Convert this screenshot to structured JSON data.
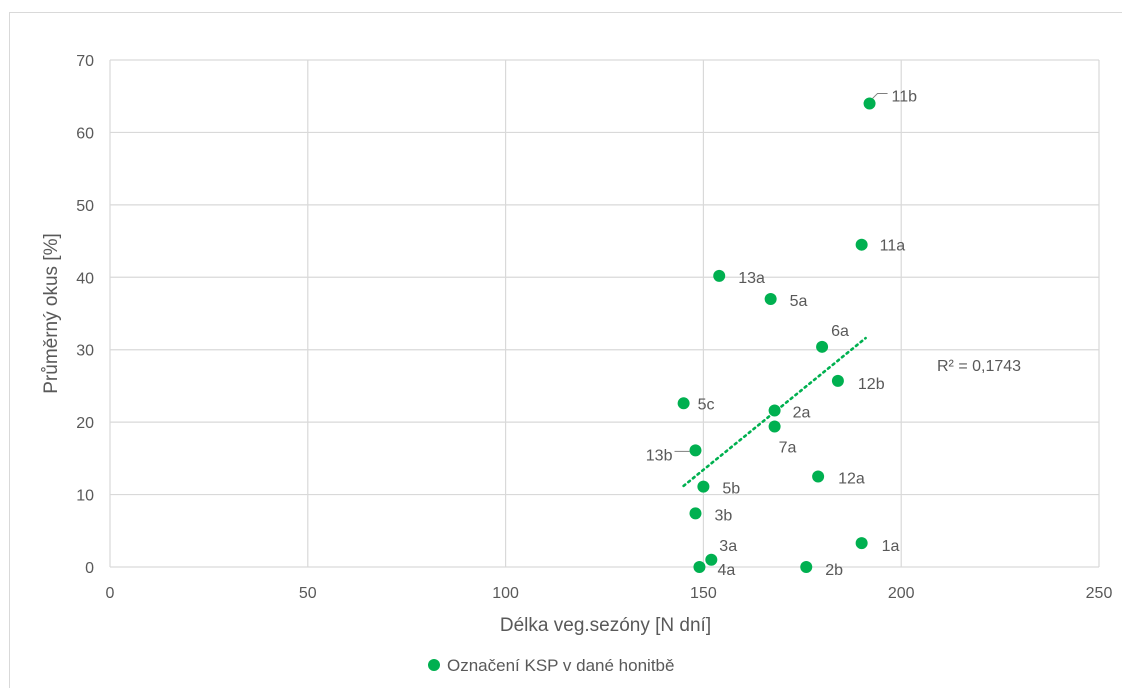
{
  "chart_data": {
    "type": "scatter",
    "title": "",
    "xlabel": "Délka veg.sezóny [N dní]",
    "ylabel": "Průměrný okus [%]",
    "xlim": [
      0,
      250
    ],
    "ylim": [
      0,
      70
    ],
    "x_ticks": [
      "0",
      "50",
      "100",
      "150",
      "200",
      "250"
    ],
    "y_ticks": [
      "0",
      "10",
      "20",
      "30",
      "40",
      "50",
      "60",
      "70"
    ],
    "grid": true,
    "legend": "bottom",
    "color": "#00b050",
    "series": [
      {
        "name": "Označení KSP v dané honitbě",
        "points": [
          {
            "label": "11b",
            "x": 192,
            "y": 64.0
          },
          {
            "label": "11a",
            "x": 190,
            "y": 44.5
          },
          {
            "label": "13a",
            "x": 154,
            "y": 40.2
          },
          {
            "label": "5a",
            "x": 167,
            "y": 37.0
          },
          {
            "label": "6a",
            "x": 180,
            "y": 30.4
          },
          {
            "label": "12b",
            "x": 184,
            "y": 25.7
          },
          {
            "label": "5c",
            "x": 145,
            "y": 22.6
          },
          {
            "label": "2a",
            "x": 168,
            "y": 21.6
          },
          {
            "label": "7a",
            "x": 168,
            "y": 19.4
          },
          {
            "label": "13b",
            "x": 148,
            "y": 16.1
          },
          {
            "label": "12a",
            "x": 179,
            "y": 12.5
          },
          {
            "label": "5b",
            "x": 150,
            "y": 11.1
          },
          {
            "label": "3b",
            "x": 148,
            "y": 7.4
          },
          {
            "label": "1a",
            "x": 190,
            "y": 3.3
          },
          {
            "label": "3a",
            "x": 152,
            "y": 1.0
          },
          {
            "label": "4a",
            "x": 149,
            "y": 0.0
          },
          {
            "label": "2b",
            "x": 176,
            "y": 0.0
          }
        ]
      }
    ],
    "trendline": {
      "type": "linear",
      "x_range": [
        145,
        191
      ],
      "y_range": [
        11.2,
        31.6
      ],
      "r2_label": "R² = 0,1743"
    }
  }
}
